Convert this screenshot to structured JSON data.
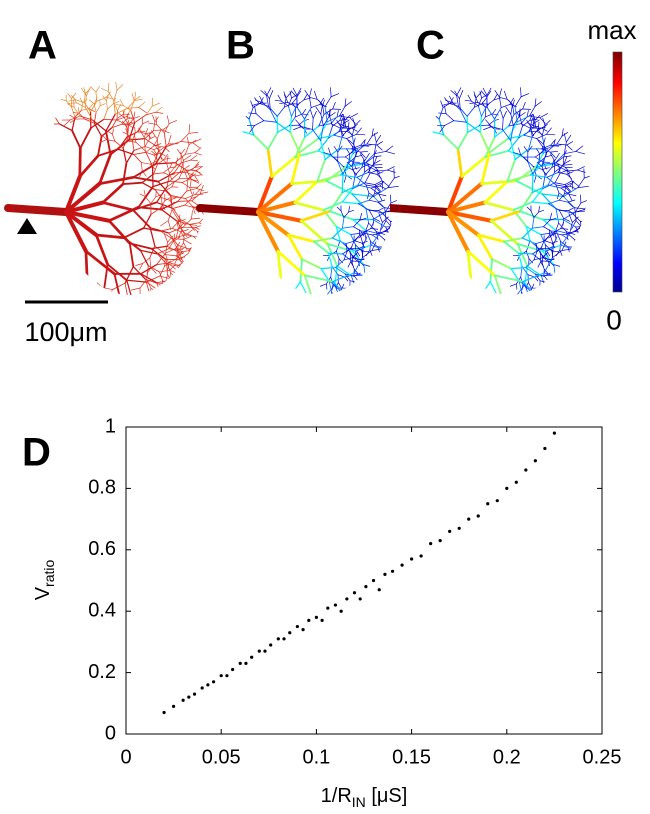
{
  "panel_labels": [
    "A",
    "B",
    "C",
    "D"
  ],
  "colorbar": {
    "max_label": "max",
    "min_label": "0"
  },
  "scale_bar": "100μm",
  "chart_data": {
    "type": "scatter",
    "x_label": {
      "main": "1/R",
      "sub": "IN",
      "rest": " [μS]"
    },
    "y_label": {
      "main": "V",
      "sub": "ratio"
    },
    "x": [
      0.02,
      0.025,
      0.03,
      0.033,
      0.036,
      0.04,
      0.043,
      0.046,
      0.05,
      0.053,
      0.056,
      0.06,
      0.063,
      0.066,
      0.07,
      0.073,
      0.076,
      0.08,
      0.083,
      0.086,
      0.09,
      0.093,
      0.096,
      0.1,
      0.103,
      0.106,
      0.11,
      0.113,
      0.116,
      0.12,
      0.123,
      0.126,
      0.13,
      0.133,
      0.136,
      0.14,
      0.145,
      0.15,
      0.155,
      0.16,
      0.165,
      0.17,
      0.175,
      0.18,
      0.185,
      0.19,
      0.195,
      0.2,
      0.205,
      0.21,
      0.215,
      0.22,
      0.225
    ],
    "y": [
      0.07,
      0.09,
      0.11,
      0.12,
      0.13,
      0.15,
      0.16,
      0.17,
      0.19,
      0.19,
      0.21,
      0.23,
      0.23,
      0.25,
      0.27,
      0.27,
      0.29,
      0.31,
      0.31,
      0.33,
      0.35,
      0.34,
      0.37,
      0.38,
      0.37,
      0.41,
      0.42,
      0.4,
      0.44,
      0.46,
      0.44,
      0.48,
      0.5,
      0.47,
      0.52,
      0.53,
      0.55,
      0.57,
      0.58,
      0.62,
      0.63,
      0.66,
      0.67,
      0.7,
      0.71,
      0.75,
      0.76,
      0.8,
      0.82,
      0.86,
      0.89,
      0.93,
      0.98
    ],
    "color": "#000000",
    "xlim": [
      0,
      0.25
    ],
    "xticks": [
      0,
      0.05,
      0.1,
      0.15,
      0.2,
      0.25
    ],
    "ylim": [
      0,
      1
    ],
    "yticks": [
      0,
      0.2,
      0.4,
      0.6,
      0.8,
      1
    ]
  }
}
